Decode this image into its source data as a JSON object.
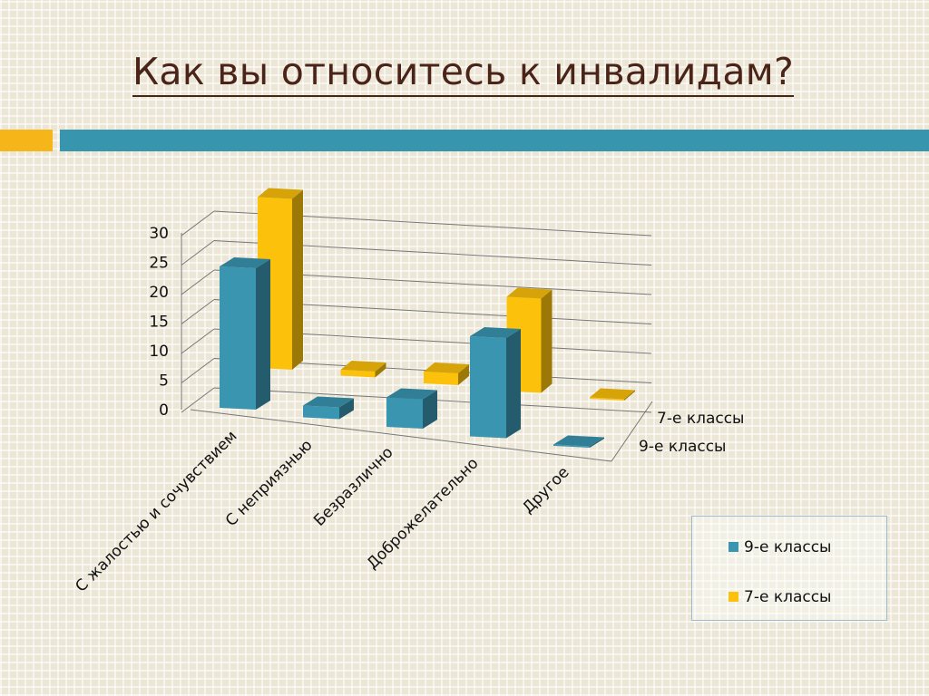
{
  "slide": {
    "title": "Как вы относитесь к инвалидам?"
  },
  "colors": {
    "accent_orange": "#f6b619",
    "accent_teal": "#3795ad",
    "title": "#4a2418"
  },
  "chart_data": {
    "type": "bar",
    "categories": [
      "С жалостью и сочувствием",
      "С неприязнью",
      "Безразлично",
      "Доброжелательно",
      "Другое"
    ],
    "series": [
      {
        "name": "9-е классы",
        "color": "#3a95b0",
        "values": [
          24,
          2,
          5,
          17,
          0
        ]
      },
      {
        "name": "7-е классы",
        "color": "#fcc10a",
        "values": [
          29,
          1,
          2,
          16,
          0
        ]
      }
    ],
    "ylim": [
      0,
      30
    ],
    "yticks": [
      0,
      5,
      10,
      15,
      20,
      25,
      30
    ],
    "grid": true,
    "legend_position": "bottom-right"
  }
}
